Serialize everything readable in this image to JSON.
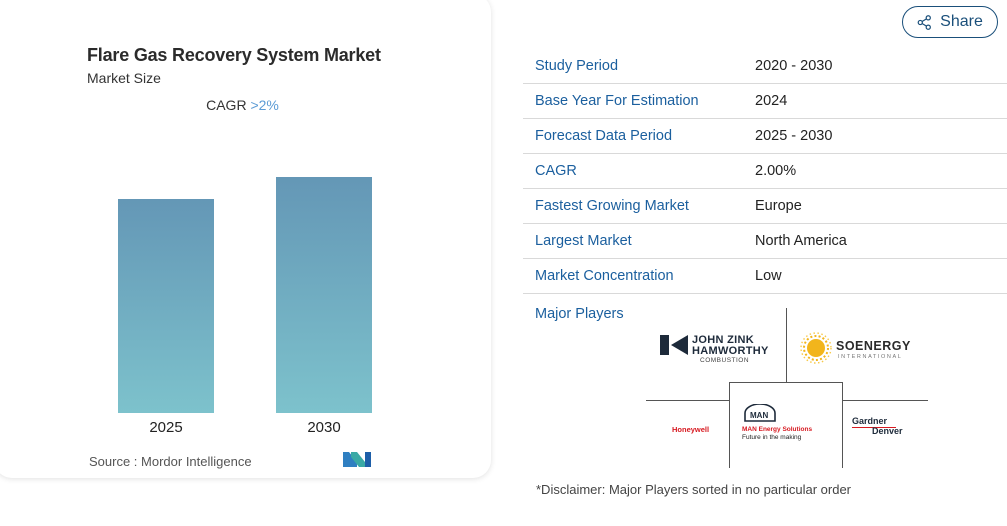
{
  "card": {
    "title": "Flare Gas Recovery System Market",
    "subtitle": "Market Size",
    "cagr_label": "CAGR ",
    "cagr_value": ">2%",
    "source": "Source :  Mordor Intelligence"
  },
  "chart_data": {
    "type": "bar",
    "categories": [
      "2025",
      "2030"
    ],
    "values": [
      1.0,
      1.104
    ],
    "title": "",
    "xlabel": "",
    "ylabel": "",
    "ylim": [
      0,
      1.104
    ],
    "grid": false,
    "colors": {
      "bar_top": "#6497b6",
      "bar_bottom": "#7dc2cc"
    }
  },
  "share": {
    "label": "Share",
    "icon": "share-icon"
  },
  "info": [
    {
      "key": "Study Period",
      "value": "2020 - 2030"
    },
    {
      "key": "Base Year For Estimation",
      "value": "2024"
    },
    {
      "key": "Forecast Data Period",
      "value": "2025 - 2030"
    },
    {
      "key": "CAGR",
      "value": "2.00%"
    },
    {
      "key": "Fastest Growing Market",
      "value": "Europe"
    },
    {
      "key": "Largest Market",
      "value": "North America"
    },
    {
      "key": "Market Concentration",
      "value": "Low"
    }
  ],
  "players": {
    "label": "Major Players",
    "john_zink": {
      "line1": "JOHN ZINK",
      "line2": "HAMWORTHY",
      "line3": "COMBUSTION"
    },
    "soenergy": {
      "name": "SOENERGY",
      "sub": "INTERNATIONAL"
    },
    "honeywell": "Honeywell",
    "man": {
      "logo": "MAN",
      "line1": "MAN Energy Solutions",
      "line2": "Future in the making"
    },
    "gardner": {
      "line1": "Gardner",
      "line2": "Denver"
    }
  },
  "disclaimer": "*Disclaimer: Major Players sorted in no particular order",
  "colors": {
    "accent": "#1b5f9e",
    "share_border": "#1a4f7a"
  }
}
